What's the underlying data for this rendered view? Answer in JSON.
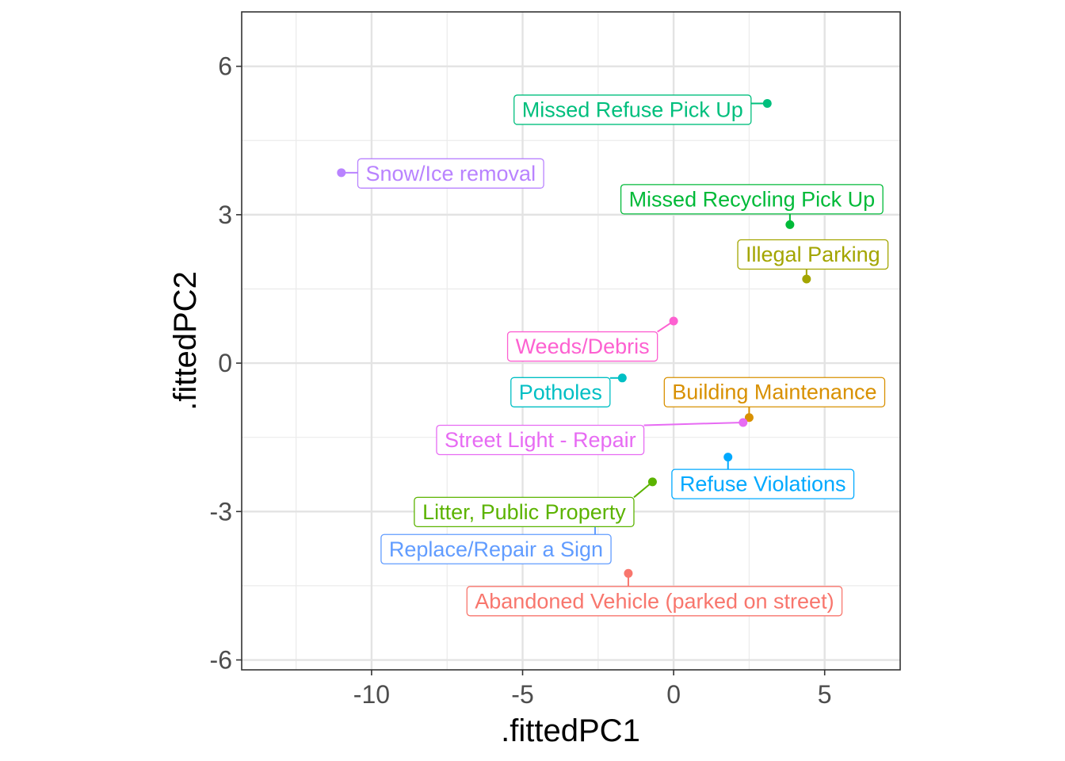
{
  "chart_data": {
    "type": "scatter",
    "xlabel": ".fittedPC1",
    "ylabel": ".fittedPC2",
    "xlim": [
      -14.3,
      7.5
    ],
    "ylim": [
      -6.2,
      7.1
    ],
    "x_ticks": [
      -10,
      -5,
      0,
      5
    ],
    "y_ticks": [
      -6,
      -3,
      0,
      3,
      6
    ],
    "x_minor": [
      -12.5,
      -7.5,
      -2.5,
      2.5
    ],
    "y_minor": [
      -4.5,
      -1.5,
      1.5,
      4.5
    ],
    "grid": true,
    "legend": "none",
    "points": [
      {
        "label": "Missed Refuse Pick Up",
        "x": 3.1,
        "y": 5.25,
        "color": "#00BF7D"
      },
      {
        "label": "Snow/Ice removal",
        "x": -11.0,
        "y": 3.85,
        "color": "#B983FF"
      },
      {
        "label": "Missed Recycling Pick Up",
        "x": 3.85,
        "y": 2.8,
        "color": "#00BA38"
      },
      {
        "label": "Illegal Parking",
        "x": 4.4,
        "y": 1.7,
        "color": "#A3A500"
      },
      {
        "label": "Weeds/Debris",
        "x": 0.0,
        "y": 0.85,
        "color": "#FD61D1"
      },
      {
        "label": "Potholes",
        "x": -1.7,
        "y": -0.3,
        "color": "#00BFC4"
      },
      {
        "label": "Building Maintenance",
        "x": 2.5,
        "y": -1.1,
        "color": "#D89000"
      },
      {
        "label": "Street Light - Repair",
        "x": 2.3,
        "y": -1.2,
        "color": "#E76BF3"
      },
      {
        "label": "Refuse Violations",
        "x": 1.8,
        "y": -1.9,
        "color": "#00A9FF"
      },
      {
        "label": "Litter, Public Property",
        "x": -0.7,
        "y": -2.4,
        "color": "#5BB300"
      },
      {
        "label": "Replace/Repair a Sign",
        "x": -2.6,
        "y": -3.2,
        "color": "#619CFF"
      },
      {
        "label": "Abandoned Vehicle (parked on street)",
        "x": -1.5,
        "y": -4.25,
        "color": "#F8766D"
      }
    ]
  }
}
